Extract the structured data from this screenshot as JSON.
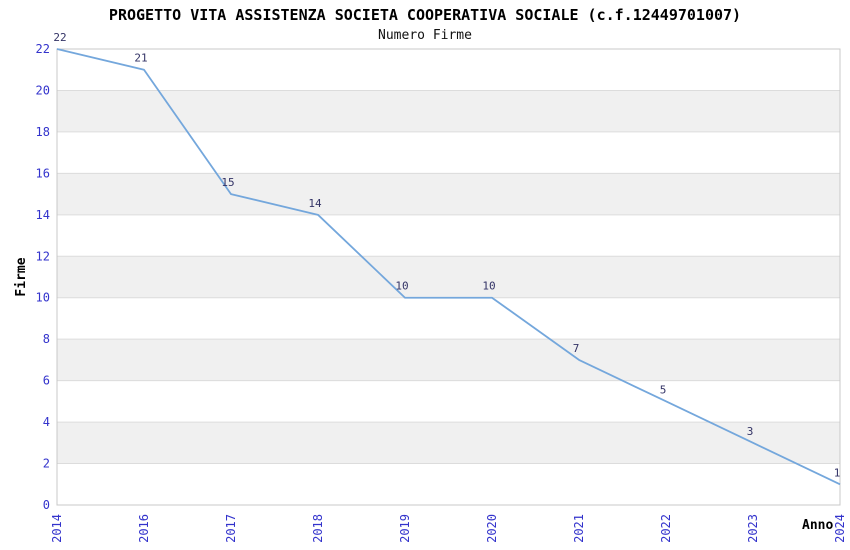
{
  "title": "PROGETTO VITA ASSISTENZA SOCIETA COOPERATIVA SOCIALE (c.f.12449701007)",
  "subtitle": "Numero Firme",
  "chart_data": {
    "type": "line",
    "title": "PROGETTO VITA ASSISTENZA SOCIETA COOPERATIVA SOCIALE (c.f.12449701007)",
    "subtitle": "Numero Firme",
    "xlabel": "Anno",
    "ylabel": "Firme",
    "categories": [
      "2014",
      "2016",
      "2017",
      "2018",
      "2019",
      "2020",
      "2021",
      "2022",
      "2023",
      "2024"
    ],
    "values": [
      22,
      21,
      15,
      14,
      10,
      10,
      7,
      5,
      3,
      1
    ],
    "ylim": [
      0,
      22
    ],
    "ytick_step": 2,
    "grid": true,
    "legend": "none",
    "band_pattern": "alternating 2-unit horizontal bands, gray on 2-4/6-8/10-12/14-16/18-20",
    "colors": {
      "line": "#74A7DC",
      "axis_tick_labels": "#3333CC",
      "point_labels": "#333366",
      "band": "#F0F0F0",
      "gridline": "#DCDCDC",
      "plot_border": "#C8C8C8",
      "text": "#000000",
      "background": "#FFFFFF"
    }
  }
}
